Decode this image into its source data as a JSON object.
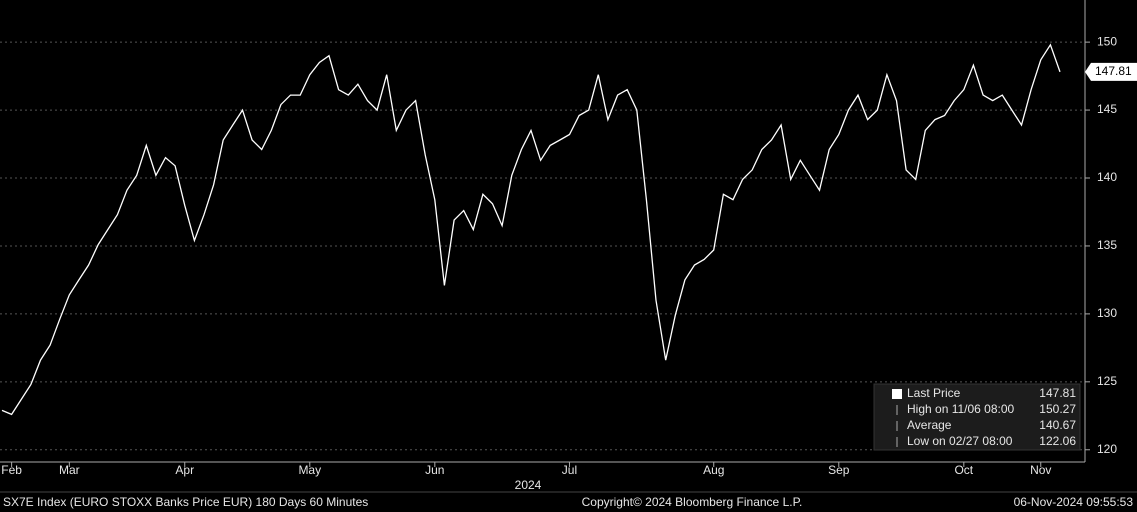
{
  "chart_data": {
    "type": "line",
    "series": [
      {
        "name": "Last Price",
        "color": "#ffffff",
        "values": [
          122.9,
          122.6,
          123.7,
          124.8,
          126.6,
          127.7,
          129.6,
          131.4,
          132.5,
          133.6,
          135.1,
          136.2,
          137.3,
          139.1,
          140.2,
          142.4,
          140.2,
          141.5,
          140.9,
          138.0,
          135.4,
          137.3,
          139.5,
          142.8,
          143.9,
          145.0,
          142.8,
          142.1,
          143.5,
          145.4,
          146.1,
          146.1,
          147.6,
          148.5,
          149.0,
          146.5,
          146.1,
          146.9,
          145.7,
          145.0,
          147.6,
          143.5,
          145.0,
          145.7,
          141.7,
          138.4,
          132.1,
          136.9,
          137.6,
          136.2,
          138.8,
          138.1,
          136.5,
          140.2,
          142.1,
          143.5,
          141.3,
          142.4,
          142.8,
          143.2,
          144.6,
          145.0,
          147.6,
          144.3,
          146.1,
          146.5,
          145.0,
          138.4,
          131.0,
          126.6,
          129.9,
          132.5,
          133.6,
          134.0,
          134.7,
          138.8,
          138.4,
          139.9,
          140.6,
          142.1,
          142.8,
          143.9,
          139.9,
          141.3,
          140.2,
          139.1,
          142.1,
          143.2,
          145.0,
          146.1,
          144.3,
          145.0,
          147.6,
          145.7,
          140.6,
          139.9,
          143.5,
          144.3,
          144.6,
          145.7,
          146.5,
          148.3,
          146.1,
          145.7,
          146.1,
          145.0,
          143.9,
          146.5,
          148.7,
          149.8,
          147.81
        ]
      }
    ],
    "xlim": [
      0,
      110
    ],
    "xticks": [
      {
        "value": 1,
        "label": "Feb"
      },
      {
        "value": 7,
        "label": "Mar"
      },
      {
        "value": 19,
        "label": "Apr"
      },
      {
        "value": 32,
        "label": "May"
      },
      {
        "value": 45,
        "label": "Jun"
      },
      {
        "value": 59,
        "label": "Jul"
      },
      {
        "value": 74,
        "label": "Aug"
      },
      {
        "value": 87,
        "label": "Sep"
      },
      {
        "value": 100,
        "label": "Oct"
      },
      {
        "value": 108,
        "label": "Nov"
      }
    ],
    "year_label": "2024",
    "ylim": [
      119.1,
      153.1
    ],
    "yticks": [
      120,
      125,
      130,
      135,
      140,
      145,
      150
    ],
    "grid": true,
    "stats": [
      {
        "label": "Last Price",
        "value": 147.81
      },
      {
        "label": "High on 11/06 08:00",
        "value": 150.27
      },
      {
        "label": "Average",
        "value": 140.67
      },
      {
        "label": "Low on 02/27 08:00",
        "value": 122.06
      }
    ],
    "footer": {
      "left": "SX7E Index (EURO STOXX Banks Price EUR) 180 Days 60 Minutes",
      "center": "Copyright© 2024 Bloomberg Finance L.P.",
      "right": "06-Nov-2024 09:55:53"
    }
  }
}
